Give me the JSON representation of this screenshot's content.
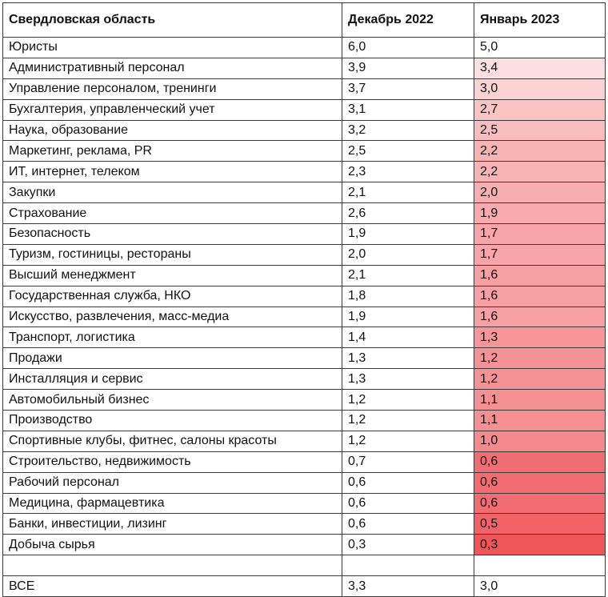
{
  "table": {
    "headers": [
      "Свердловская область",
      "Декабрь 2022",
      "Январь 2023"
    ],
    "rows": [
      {
        "label": "Юристы",
        "dec": "6,0",
        "jan": "5,0",
        "heat": 0.0
      },
      {
        "label": "Административный персонал",
        "dec": "3,9",
        "jan": "3,4",
        "heat": 0.18
      },
      {
        "label": "Управление персоналом, тренинги",
        "dec": "3,7",
        "jan": "3,0",
        "heat": 0.27
      },
      {
        "label": "Бухгалтерия, управленческий учет",
        "dec": "3,1",
        "jan": "2,7",
        "heat": 0.35
      },
      {
        "label": "Наука, образование",
        "dec": "3,2",
        "jan": "2,5",
        "heat": 0.39
      },
      {
        "label": "Маркетинг, реклама, PR",
        "dec": "2,5",
        "jan": "2,2",
        "heat": 0.45
      },
      {
        "label": "ИТ, интернет, телеком",
        "dec": "2,3",
        "jan": "2,2",
        "heat": 0.45
      },
      {
        "label": "Закупки",
        "dec": "2,1",
        "jan": "2,0",
        "heat": 0.48
      },
      {
        "label": "Страхование",
        "dec": "2,6",
        "jan": "1,9",
        "heat": 0.5
      },
      {
        "label": "Безопасность",
        "dec": "1,9",
        "jan": "1,7",
        "heat": 0.53
      },
      {
        "label": "Туризм, гостиницы, рестораны",
        "dec": "2,0",
        "jan": "1,7",
        "heat": 0.53
      },
      {
        "label": "Высший менеджмент",
        "dec": "2,1",
        "jan": "1,6",
        "heat": 0.56
      },
      {
        "label": "Государственная служба, НКО",
        "dec": "1,8",
        "jan": "1,6",
        "heat": 0.56
      },
      {
        "label": "Искусство, развлечения, масс-медиа",
        "dec": "1,9",
        "jan": "1,6",
        "heat": 0.56
      },
      {
        "label": "Транспорт, логистика",
        "dec": "1,4",
        "jan": "1,3",
        "heat": 0.62
      },
      {
        "label": "Продажи",
        "dec": "1,3",
        "jan": "1,2",
        "heat": 0.64
      },
      {
        "label": "Инсталляция и сервис",
        "dec": "1,3",
        "jan": "1,2",
        "heat": 0.64
      },
      {
        "label": "Автомобильный бизнес",
        "dec": "1,2",
        "jan": "1,1",
        "heat": 0.66
      },
      {
        "label": "Производство",
        "dec": "1,2",
        "jan": "1,1",
        "heat": 0.66
      },
      {
        "label": "Спортивные клубы, фитнес, салоны красоты",
        "dec": "1,2",
        "jan": "1,0",
        "heat": 0.69
      },
      {
        "label": "Строительство, недвижимость",
        "dec": "0,7",
        "jan": "0,6",
        "heat": 0.86
      },
      {
        "label": "Рабочий персонал",
        "dec": "0,6",
        "jan": "0,6",
        "heat": 0.86
      },
      {
        "label": "Медицина, фармацевтика",
        "dec": "0,6",
        "jan": "0,6",
        "heat": 0.86
      },
      {
        "label": "Банки, инвестиции, лизинг",
        "dec": "0,6",
        "jan": "0,5",
        "heat": 0.92
      },
      {
        "label": "Добыча сырья",
        "dec": "0,3",
        "jan": "0,3",
        "heat": 1.0
      }
    ],
    "total": {
      "label": "ВСЕ",
      "dec": "3,3",
      "jan": "3,0"
    }
  },
  "colors": {
    "heat_low": "#ffffff",
    "heat_high": "#f0555a"
  }
}
